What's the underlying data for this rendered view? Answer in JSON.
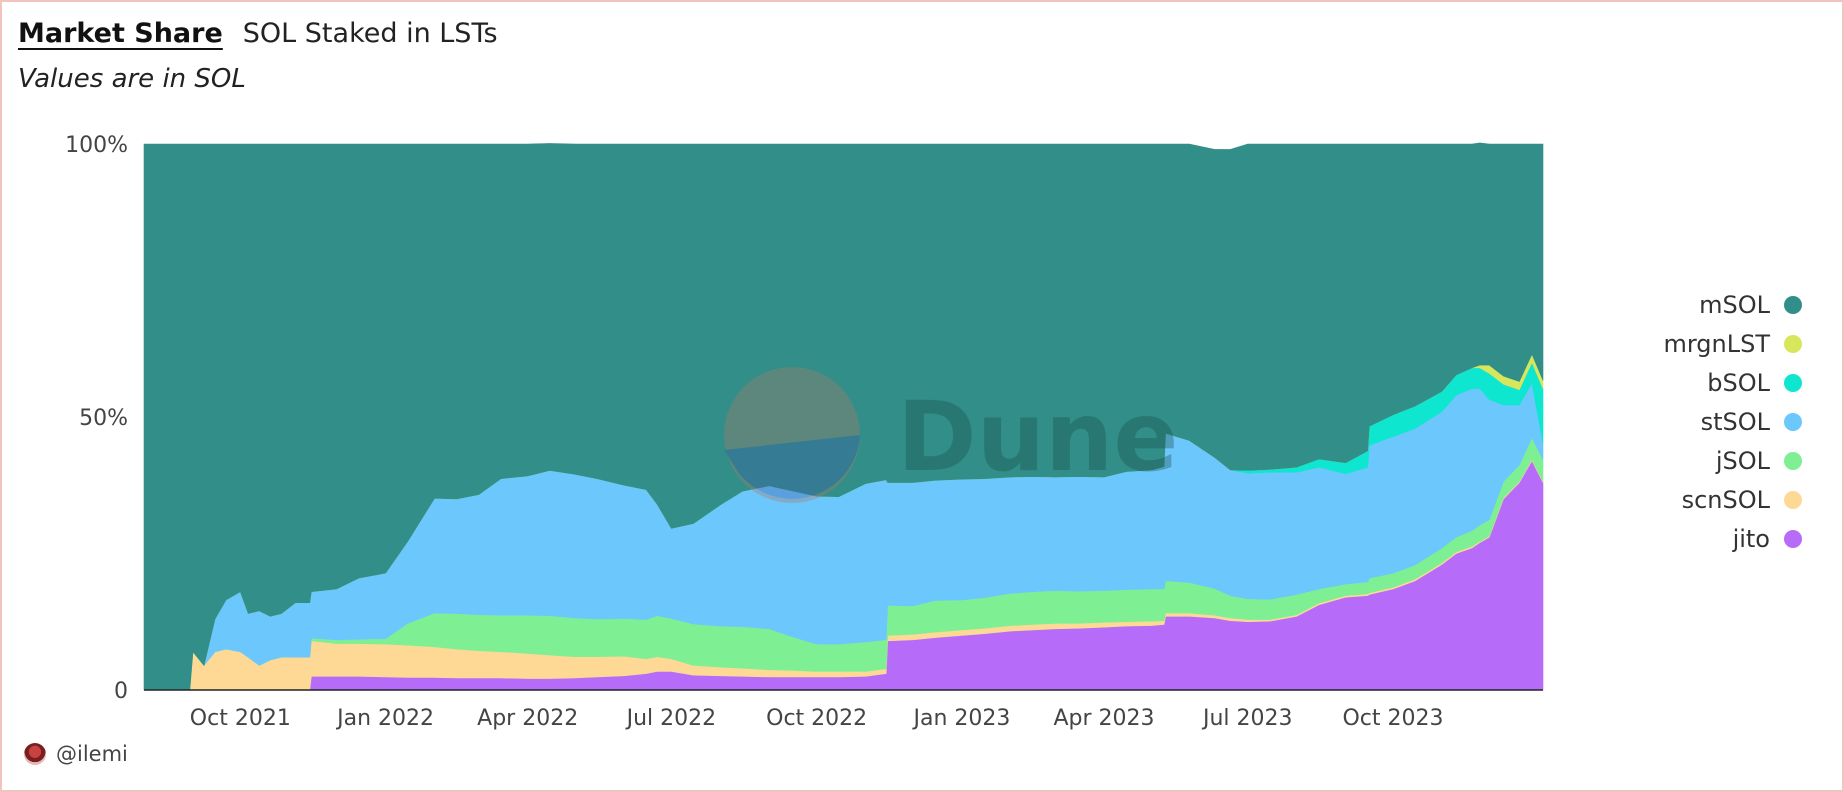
{
  "header": {
    "tab_label": "Market Share",
    "chart_title": "SOL Staked in LSTs",
    "subtitle": "Values are in SOL"
  },
  "author": {
    "handle": "@ilemi"
  },
  "watermark": {
    "text": "Dune"
  },
  "chart_data": {
    "type": "area",
    "stacked": true,
    "normalized": true,
    "title": "SOL Staked in LSTs",
    "subtitle": "Values are in SOL",
    "xlabel": "",
    "ylabel": "",
    "y_tick_labels": [
      "0",
      "50%",
      "100%"
    ],
    "y_tick_values": [
      0,
      50,
      100
    ],
    "ylim": [
      0,
      100
    ],
    "xlim": [
      "2021-08-01",
      "2024-01-04"
    ],
    "x_tick_labels": [
      "Oct 2021",
      "Jan 2022",
      "Apr 2022",
      "Jul 2022",
      "Oct 2022",
      "Jan 2023",
      "Apr 2023",
      "Jul 2023",
      "Oct 2023"
    ],
    "x_tick_dates": [
      "2021-10-01",
      "2022-01-01",
      "2022-04-01",
      "2022-07-01",
      "2022-10-01",
      "2023-01-01",
      "2023-04-01",
      "2023-07-01",
      "2023-10-01"
    ],
    "grid": false,
    "legend": "right",
    "x": [
      "2021-08-01",
      "2021-08-30",
      "2021-09-01",
      "2021-09-08",
      "2021-09-15",
      "2021-09-22",
      "2021-10-01",
      "2021-10-06",
      "2021-10-13",
      "2021-10-20",
      "2021-10-27",
      "2021-11-05",
      "2021-11-14",
      "2021-11-15",
      "2021-12-01",
      "2021-12-15",
      "2022-01-01",
      "2022-01-15",
      "2022-02-01",
      "2022-02-15",
      "2022-03-01",
      "2022-03-15",
      "2022-04-01",
      "2022-04-15",
      "2022-05-01",
      "2022-05-15",
      "2022-06-01",
      "2022-06-15",
      "2022-06-22",
      "2022-07-01",
      "2022-07-15",
      "2022-08-01",
      "2022-08-15",
      "2022-09-01",
      "2022-09-15",
      "2022-10-01",
      "2022-10-15",
      "2022-11-01",
      "2022-11-14",
      "2022-11-15",
      "2022-12-01",
      "2022-12-15",
      "2023-01-01",
      "2023-01-15",
      "2023-02-01",
      "2023-02-15",
      "2023-03-01",
      "2023-03-15",
      "2023-04-01",
      "2023-04-15",
      "2023-05-01",
      "2023-05-09",
      "2023-05-10",
      "2023-05-25",
      "2023-06-10",
      "2023-06-20",
      "2023-07-01",
      "2023-07-15",
      "2023-08-01",
      "2023-08-15",
      "2023-09-01",
      "2023-09-15",
      "2023-09-16",
      "2023-10-01",
      "2023-10-15",
      "2023-11-01",
      "2023-11-10",
      "2023-11-20",
      "2023-11-25",
      "2023-12-01",
      "2023-12-10",
      "2023-12-20",
      "2023-12-28",
      "2024-01-04"
    ],
    "series": [
      {
        "name": "jito",
        "color": "#b76cf9",
        "values": [
          0,
          0,
          0,
          0,
          0,
          0,
          0,
          0,
          0,
          0,
          0,
          0,
          0,
          2.5,
          2.5,
          2.5,
          2.4,
          2.3,
          2.3,
          2.2,
          2.2,
          2.2,
          2.1,
          2.1,
          2.2,
          2.4,
          2.6,
          3,
          3.4,
          3.4,
          2.7,
          2.6,
          2.5,
          2.4,
          2.4,
          2.4,
          2.4,
          2.5,
          3,
          9,
          9.2,
          9.6,
          10,
          10.3,
          10.8,
          11,
          11.2,
          11.3,
          11.5,
          11.7,
          11.8,
          12,
          13.5,
          13.5,
          13.2,
          12.7,
          12.5,
          12.6,
          13.5,
          15.6,
          17,
          17.3,
          17.5,
          18.5,
          20,
          23,
          25,
          26,
          27,
          28,
          35,
          38,
          42,
          38
        ]
      },
      {
        "name": "scnSOL",
        "color": "#fdd995",
        "values": [
          0,
          0,
          7,
          4.5,
          7,
          7.5,
          7,
          6,
          4.5,
          5.5,
          6,
          6,
          6,
          6.5,
          6,
          6,
          6,
          5.9,
          5.6,
          5.3,
          5,
          4.8,
          4.6,
          4.3,
          3.9,
          3.7,
          3.6,
          2.7,
          2.7,
          2.3,
          1.8,
          1.6,
          1.5,
          1.3,
          1.2,
          1,
          1,
          0.9,
          0.9,
          1,
          1,
          1,
          1,
          1,
          1,
          1,
          1,
          0.9,
          0.9,
          0.8,
          0.8,
          0.7,
          0.6,
          0.6,
          0.5,
          0.5,
          0.4,
          0.3,
          0.3,
          0.3,
          0.3,
          0.3,
          0.3,
          0.3,
          0.3,
          0.3,
          0.3,
          0.3,
          0.2,
          0.2,
          0.2,
          0.2,
          0.2,
          0.2
        ]
      },
      {
        "name": "jSOL",
        "color": "#7fef93",
        "values": [
          0,
          0,
          0,
          0,
          0,
          0,
          0,
          0,
          0,
          0,
          0,
          0,
          0,
          0.5,
          0.7,
          0.8,
          1,
          4,
          6.2,
          6.5,
          6.6,
          6.7,
          7,
          7.2,
          7.1,
          6.9,
          6.9,
          7.2,
          7.5,
          7.4,
          7.6,
          7.5,
          7.6,
          7.5,
          6.2,
          5,
          5,
          5.4,
          5.3,
          5.5,
          5.2,
          5.8,
          5.5,
          5.6,
          5.9,
          6,
          6,
          5.9,
          5.8,
          5.9,
          5.9,
          5.8,
          5.9,
          5.6,
          4.9,
          4.1,
          3.8,
          3.7,
          3.7,
          2.6,
          2.1,
          2.2,
          2.7,
          2.6,
          2.6,
          2.7,
          2.7,
          2.9,
          3,
          3,
          3,
          3,
          4,
          4
        ]
      },
      {
        "name": "stSOL",
        "color": "#6cc7fc",
        "values": [
          0,
          0,
          0,
          0,
          6,
          9,
          11,
          8,
          10,
          8,
          8,
          10,
          10,
          8.5,
          9.3,
          11.2,
          12,
          15,
          21,
          21,
          22,
          25,
          25.5,
          26.6,
          26.3,
          25.7,
          24.4,
          23.8,
          20.4,
          16.5,
          18.4,
          22.2,
          24.8,
          26.2,
          26.7,
          27.1,
          27,
          29,
          29.3,
          22.5,
          22.6,
          22,
          22.1,
          21.8,
          21.3,
          21.1,
          20.8,
          21,
          20.8,
          21.6,
          21.8,
          22.4,
          27,
          26,
          24,
          23,
          23,
          23.3,
          22.4,
          22.3,
          20.2,
          21,
          24.3,
          25,
          25,
          25,
          26,
          26,
          25,
          22,
          14,
          11,
          10,
          3
        ]
      },
      {
        "name": "bSOL",
        "color": "#0ee6d0",
        "values": [
          0,
          0,
          0,
          0,
          0,
          0,
          0,
          0,
          0,
          0,
          0,
          0,
          0,
          0,
          0,
          0,
          0,
          0,
          0,
          0,
          0,
          0,
          0,
          0,
          0,
          0,
          0,
          0,
          0,
          0,
          0,
          0,
          0,
          0,
          0,
          0,
          0,
          0,
          0,
          0,
          0,
          0,
          0,
          0,
          0,
          0,
          0,
          0,
          0,
          0,
          0,
          0,
          0,
          0,
          0,
          0,
          0.5,
          0.5,
          0.9,
          1.5,
          2,
          3,
          3.5,
          4,
          4.1,
          3.7,
          3.7,
          3.8,
          3.8,
          4.8,
          3.8,
          2.8,
          3.8,
          10
        ]
      },
      {
        "name": "mrgnLST",
        "color": "#d8e65c",
        "values": [
          0,
          0,
          0,
          0,
          0,
          0,
          0,
          0,
          0,
          0,
          0,
          0,
          0,
          0,
          0,
          0,
          0,
          0,
          0,
          0,
          0,
          0,
          0,
          0,
          0,
          0,
          0,
          0,
          0,
          0,
          0,
          0,
          0,
          0,
          0,
          0,
          0,
          0,
          0,
          0,
          0,
          0,
          0,
          0,
          0,
          0,
          0,
          0,
          0,
          0,
          0,
          0,
          0,
          0,
          0,
          0,
          0,
          0,
          0,
          0,
          0,
          0,
          0,
          0,
          0,
          0,
          0,
          0,
          0.5,
          1.5,
          1.5,
          1.5,
          1.5,
          1.5
        ]
      },
      {
        "name": "mSOL",
        "color": "#318e89",
        "values": [
          100,
          100,
          93,
          95.5,
          87,
          83.5,
          82,
          86,
          85.5,
          86.5,
          86,
          84,
          84,
          82,
          81.5,
          79.5,
          78.6,
          72.8,
          64.9,
          65,
          64.2,
          61.3,
          60.8,
          59.9,
          60.5,
          61.3,
          62.5,
          63.3,
          66,
          70.4,
          69.5,
          66.1,
          63.6,
          62.6,
          63.5,
          64.5,
          64.6,
          62.2,
          61.5,
          62,
          62,
          61.6,
          61.4,
          61.3,
          61,
          60.9,
          61,
          60.9,
          61,
          60,
          59.7,
          59.1,
          53,
          54.3,
          56.4,
          58.7,
          59.8,
          59.6,
          59.2,
          57.7,
          58.4,
          56.2,
          51.7,
          49.6,
          48,
          45.3,
          42.3,
          41,
          40.7,
          40.5,
          42.5,
          43.5,
          38.5,
          43.3
        ]
      }
    ]
  }
}
